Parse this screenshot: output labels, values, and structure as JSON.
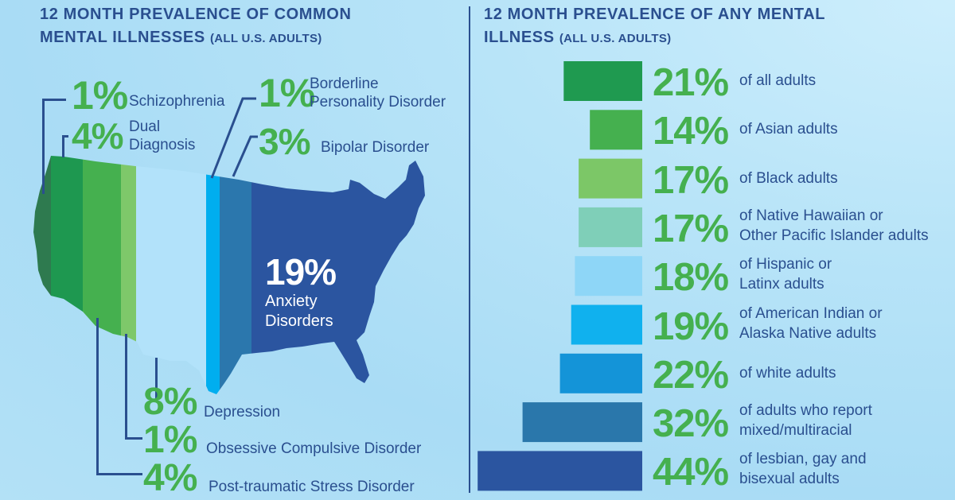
{
  "left_panel": {
    "title_line1": "12 MONTH PREVALENCE OF COMMON",
    "title_line2": "MENTAL ILLNESSES",
    "title_note": "(ALL U.S. ADULTS)",
    "callouts": {
      "schizophrenia": {
        "pct": "1%",
        "label": "Schizophrenia"
      },
      "dual": {
        "pct": "4%",
        "label_line1": "Dual",
        "label_line2": "Diagnosis"
      },
      "borderline": {
        "pct": "1%",
        "label_line1": "Borderline",
        "label_line2": "Personality Disorder"
      },
      "bipolar": {
        "pct": "3%",
        "label": "Bipolar Disorder"
      },
      "anxiety": {
        "pct": "19%",
        "label_line1": "Anxiety",
        "label_line2": "Disorders"
      },
      "depression": {
        "pct": "8%",
        "label": "Depression"
      },
      "ocd": {
        "pct": "1%",
        "label": "Obsessive Compulsive Disorder"
      },
      "ptsd": {
        "pct": "4%",
        "label": "Post-traumatic Stress Disorder"
      }
    },
    "map_band_colors": [
      "#2e7a4f",
      "#1e9850",
      "#45b04f",
      "#7ec86a",
      "#b2e2fa",
      "#00aeef",
      "#2b77ad",
      "#2b55a0"
    ]
  },
  "right_panel": {
    "title_line1": "12 MONTH PREVALENCE OF ANY MENTAL",
    "title_line2": "ILLNESS",
    "title_note": "(ALL U.S. ADULTS)"
  },
  "chart_data": [
    {
      "type": "bar",
      "title": "12 MONTH PREVALENCE OF ANY MENTAL ILLNESS (ALL U.S. ADULTS)",
      "orientation": "horizontal",
      "unit": "%",
      "categories": [
        "of all adults",
        "of Asian adults",
        "of Black adults",
        "of Native Hawaiian or Other Pacific Islander adults",
        "of Hispanic or Latinx adults",
        "of American Indian or Alaska Native adults",
        "of white adults",
        "of adults who report mixed/multiracial",
        "of lesbian, gay and bisexual adults"
      ],
      "values": [
        21,
        14,
        17,
        17,
        18,
        19,
        22,
        32,
        44
      ],
      "value_labels": [
        "21%",
        "14%",
        "17%",
        "17%",
        "18%",
        "19%",
        "22%",
        "32%",
        "44%"
      ],
      "label_lines": [
        [
          "of all adults"
        ],
        [
          "of Asian adults"
        ],
        [
          "of Black adults"
        ],
        [
          "of Native Hawaiian or",
          "Other Pacific Islander adults"
        ],
        [
          "of Hispanic or",
          "Latinx adults"
        ],
        [
          "of American Indian or",
          "Alaska Native adults"
        ],
        [
          "of white adults"
        ],
        [
          "of adults who report",
          "mixed/multiracial"
        ],
        [
          "of lesbian, gay and",
          "bisexual adults"
        ]
      ],
      "colors": [
        "#1f9a50",
        "#45b04f",
        "#7cc767",
        "#7fcfb8",
        "#8ed6f7",
        "#10b1ee",
        "#1494d8",
        "#2a77ab",
        "#2b55a0"
      ],
      "grid": false,
      "legend": "none"
    },
    {
      "type": "map",
      "title": "12 MONTH PREVALENCE OF COMMON MENTAL ILLNESSES (ALL U.S. ADULTS)",
      "categories": [
        "Schizophrenia",
        "Dual Diagnosis",
        "Post-traumatic Stress Disorder",
        "Obsessive Compulsive Disorder",
        "Depression",
        "Borderline Personality Disorder",
        "Bipolar Disorder",
        "Anxiety Disorders"
      ],
      "values": [
        1,
        4,
        4,
        1,
        8,
        1,
        3,
        19
      ],
      "unit": "%"
    }
  ]
}
